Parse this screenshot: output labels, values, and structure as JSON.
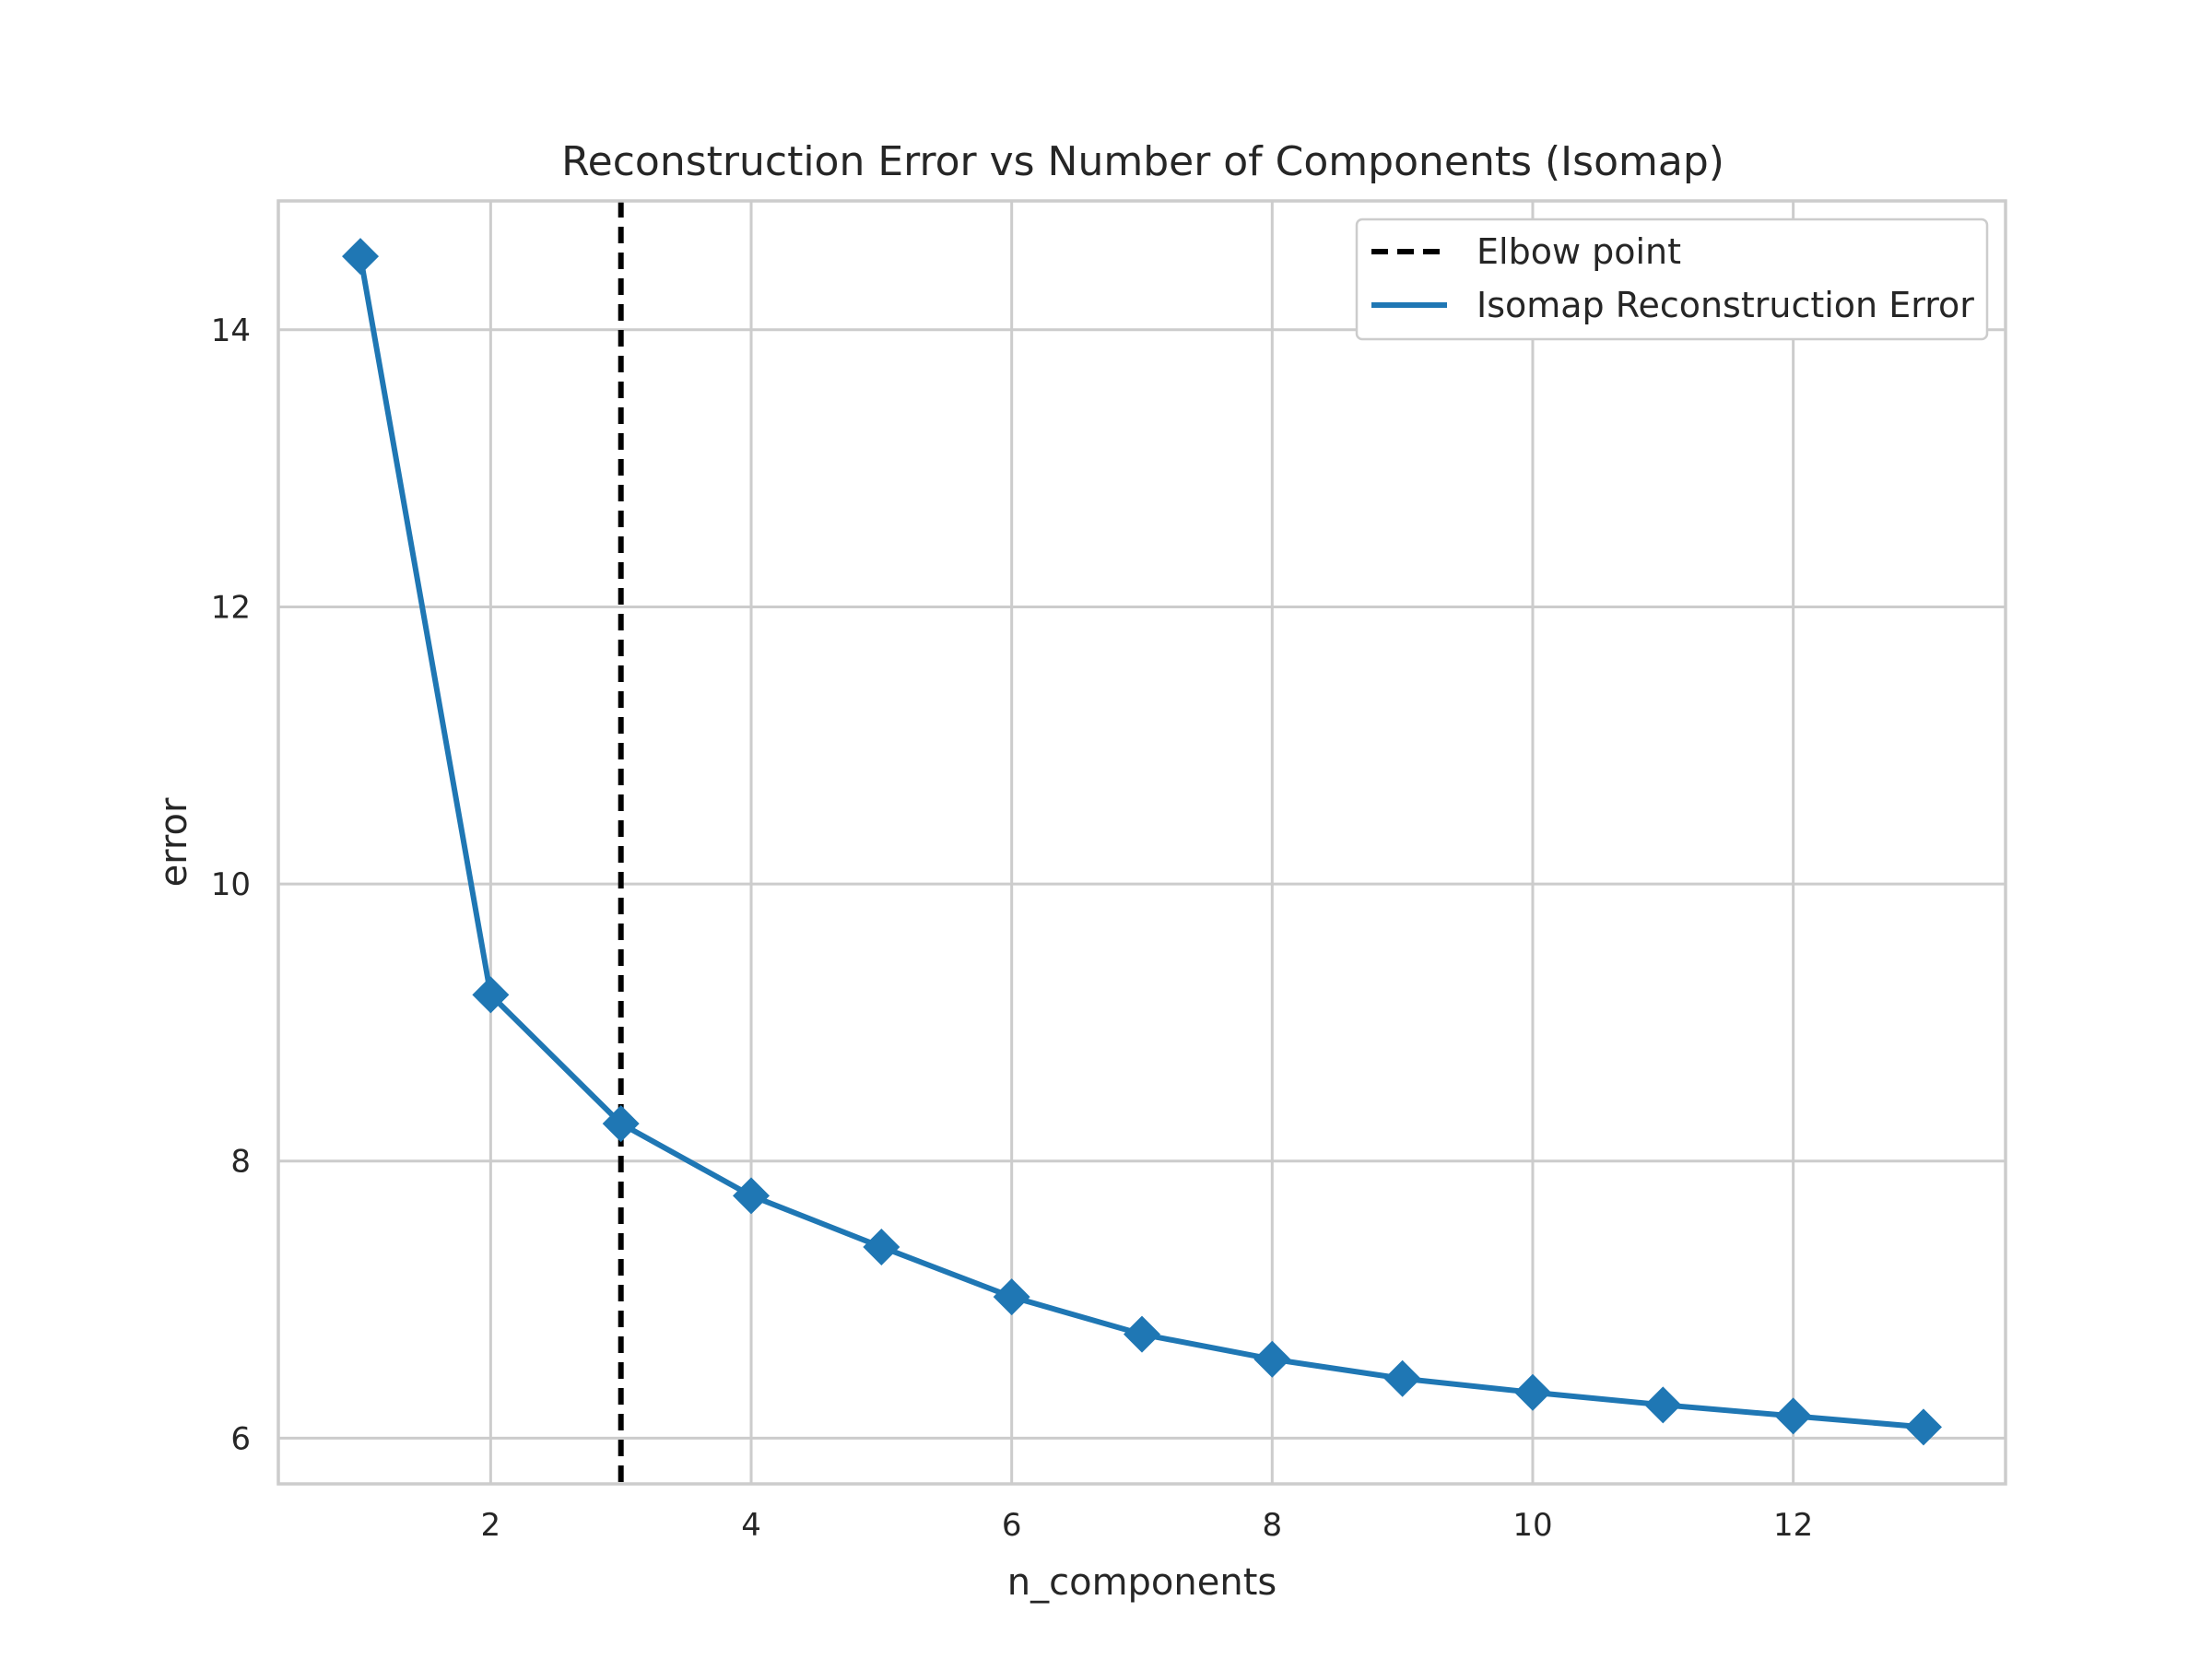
{
  "chart_data": {
    "type": "line",
    "title": "Reconstruction Error vs Number of Components (Isomap)",
    "xlabel": "n_components",
    "ylabel": "error",
    "xlim": [
      0.37,
      13.63
    ],
    "ylim": [
      5.67,
      14.93
    ],
    "xticks": [
      2,
      4,
      6,
      8,
      10,
      12
    ],
    "yticks": [
      6,
      8,
      10,
      12,
      14
    ],
    "grid": true,
    "legend_position": "top-right",
    "series": [
      {
        "name": "Isomap Reconstruction Error",
        "color": "#1f77b4",
        "marker": "diamond",
        "x": [
          1,
          2,
          3,
          4,
          5,
          6,
          7,
          8,
          9,
          10,
          11,
          12,
          13
        ],
        "y": [
          14.53,
          9.2,
          8.27,
          7.75,
          7.38,
          7.02,
          6.75,
          6.57,
          6.43,
          6.33,
          6.24,
          6.16,
          6.08
        ]
      }
    ],
    "vlines": [
      {
        "name": "Elbow point",
        "x": 3,
        "color": "#000000",
        "style": "dashed"
      }
    ]
  }
}
